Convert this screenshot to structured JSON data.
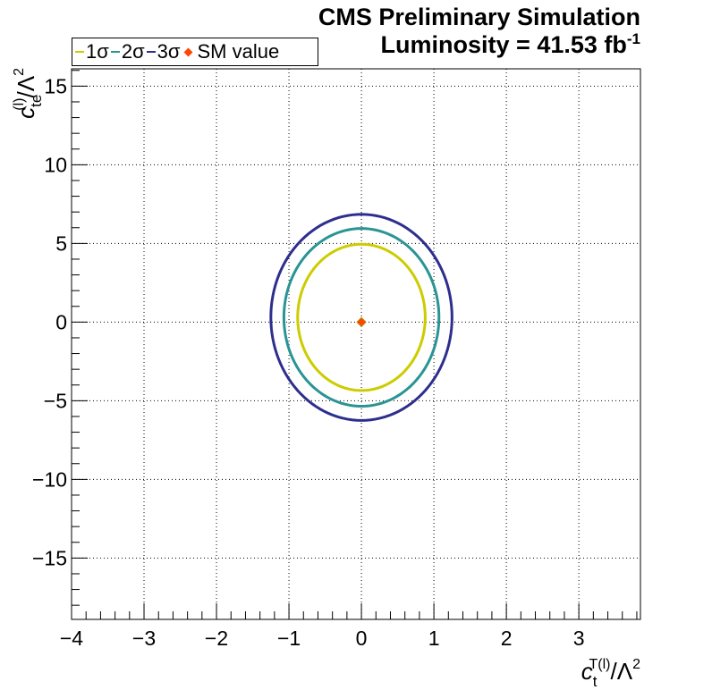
{
  "header": {
    "title_line1": "CMS Preliminary Simulation",
    "title_line2_prefix": "Luminosity = 41.53 fb",
    "title_line2_sup": "-1"
  },
  "legend": {
    "items": [
      {
        "label": "1σ",
        "color": "#cccc00"
      },
      {
        "label": "2σ",
        "color": "#2a9494"
      },
      {
        "label": "3σ",
        "color": "#2e2e8e"
      },
      {
        "label": "SM value",
        "color": "#ff4500",
        "marker": "diamond"
      }
    ]
  },
  "chart_data": {
    "type": "contour",
    "xlabel": {
      "base": "c",
      "sub": "t",
      "sup": "T(l)",
      "suffix": "/Λ",
      "suffix_sup": "2"
    },
    "ylabel": {
      "base": "c",
      "sub": "te",
      "sup": "(l)",
      "suffix": "/Λ",
      "suffix_sup": "2"
    },
    "xlim": [
      -4,
      3.85
    ],
    "ylim": [
      -18.9,
      16.1
    ],
    "xticks": [
      -4,
      -3,
      -2,
      -1,
      0,
      1,
      2,
      3
    ],
    "xtick_labels": [
      "−4",
      "−3",
      "−2",
      "−1",
      "0",
      "1",
      "2",
      "3"
    ],
    "yticks": [
      -15,
      -10,
      -5,
      0,
      5,
      10,
      15
    ],
    "ytick_labels": [
      "−15",
      "−10",
      "−5",
      "0",
      "5",
      "10",
      "15"
    ],
    "grid": true,
    "legend_position": "top-left",
    "series": [
      {
        "name": "1σ",
        "color": "#cccc00",
        "cx": 0.0,
        "cy": 0.3,
        "x_min": -0.88,
        "x_max": 0.88,
        "y_min": -4.35,
        "y_max": 4.95
      },
      {
        "name": "2σ",
        "color": "#2a9494",
        "cx": 0.0,
        "cy": 0.3,
        "x_min": -1.07,
        "x_max": 1.07,
        "y_min": -5.35,
        "y_max": 5.95
      },
      {
        "name": "3σ",
        "color": "#2e2e8e",
        "cx": 0.0,
        "cy": 0.3,
        "x_min": -1.25,
        "x_max": 1.25,
        "y_min": -6.25,
        "y_max": 6.85
      }
    ],
    "points": [
      {
        "name": "SM value",
        "x": 0,
        "y": 0,
        "color": "#ff4500"
      }
    ]
  }
}
